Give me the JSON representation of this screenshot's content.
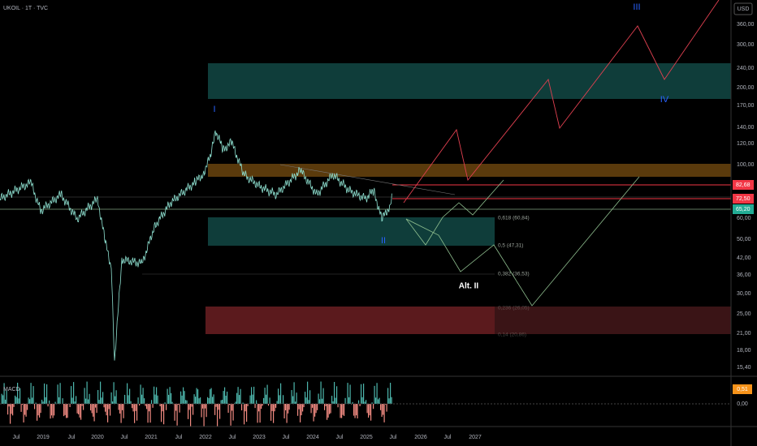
{
  "header": {
    "symbol": "UKOIL · 1T · TVC",
    "currency": "USD"
  },
  "price_axis": [
    "360,00",
    "300,00",
    "240,00",
    "200,00",
    "170,00",
    "140,00",
    "120,00",
    "100,00",
    "60,00",
    "50,00",
    "42,00",
    "36,00",
    "30,00",
    "25,00",
    "21,00",
    "18,00",
    "15,40"
  ],
  "price_tags": [
    "82,68",
    "72,50",
    "65,20"
  ],
  "time_axis": [
    "Jul",
    "2019",
    "Jul",
    "2020",
    "Jul",
    "2021",
    "Jul",
    "2022",
    "Jul",
    "2023",
    "Jul",
    "2024",
    "Jul",
    "2025",
    "Jul",
    "2026",
    "Jul",
    "2027"
  ],
  "waves": [
    "I",
    "II",
    "III",
    "IV",
    "Alt. II"
  ],
  "fib_levels": [
    "0,618 (60,84)",
    "0,5 (47,31)",
    "0,382 (36,53)",
    "0,236 (26,05)",
    "0,14 (20,86)"
  ],
  "indicator": {
    "name": "MACD",
    "value": "0,51",
    "zero": "0,00"
  }
}
